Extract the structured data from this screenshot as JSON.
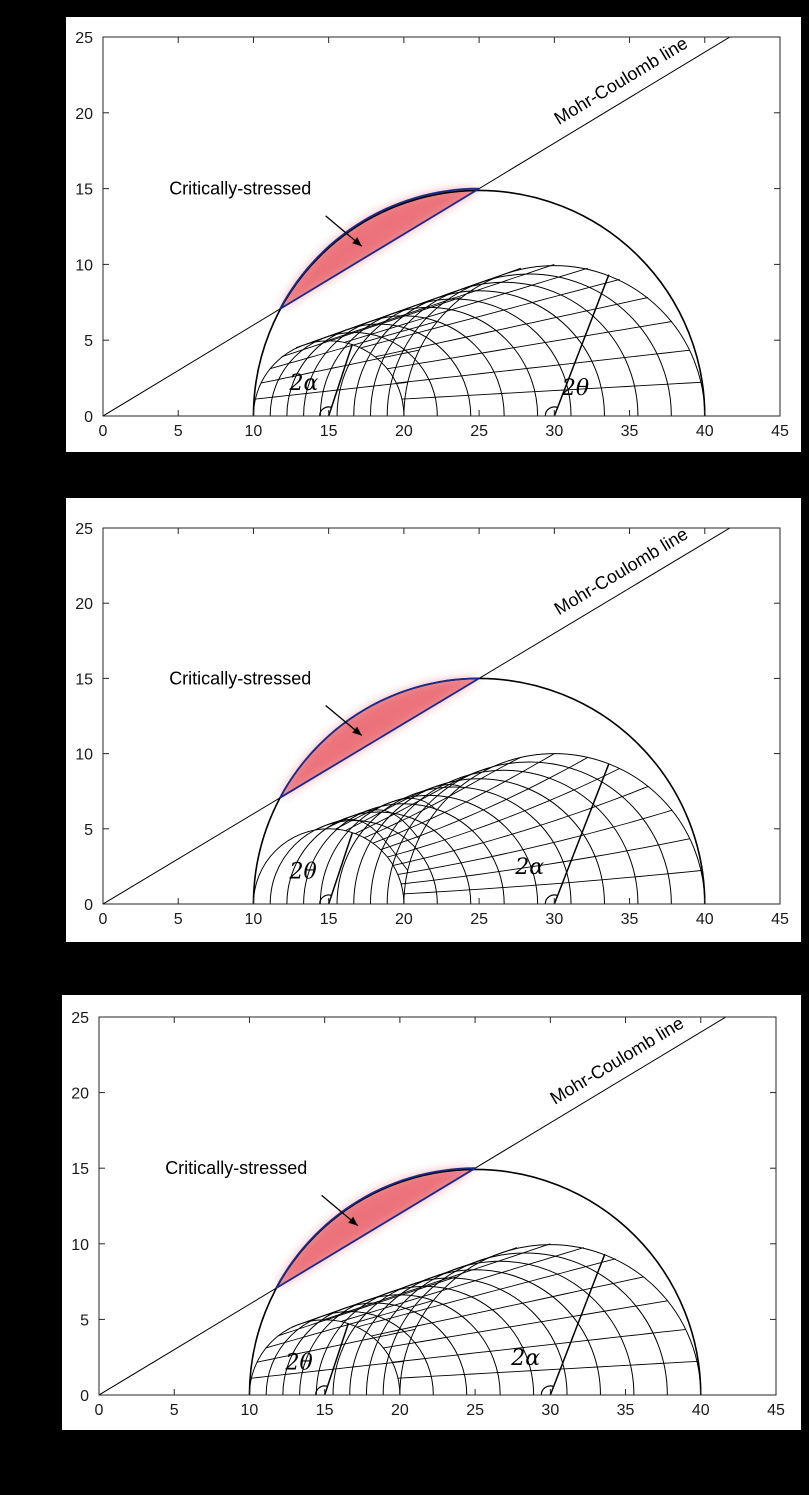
{
  "chart_data": [
    {
      "type": "mohr-circle",
      "title": "",
      "xlabel": "",
      "ylabel": "",
      "xlim": [
        0,
        45
      ],
      "ylim": [
        0,
        25
      ],
      "xticks": [
        0,
        5,
        10,
        15,
        20,
        25,
        30,
        35,
        40,
        45
      ],
      "yticks": [
        0,
        5,
        10,
        15,
        20,
        25
      ],
      "grid": false,
      "inner_circle": {
        "center": 15,
        "radius": 5
      },
      "outer_circle": {
        "center": 30,
        "radius": 10
      },
      "envelope_circle": {
        "center": 25,
        "radius": 15
      },
      "mohr_coulomb_line": {
        "slope": 0.6,
        "intercept": 0,
        "label": "Mohr-Coulomb line"
      },
      "critical_region": {
        "label": "Critically-stressed",
        "from": [
          11.76,
          7.06
        ],
        "to": [
          25,
          15
        ]
      },
      "family_variable": "alpha",
      "angle_labels": [
        {
          "text": "2α",
          "center": 15
        },
        {
          "text": "2θ",
          "center": 30
        }
      ]
    },
    {
      "type": "mohr-circle",
      "title": "",
      "xlabel": "",
      "ylabel": "",
      "xlim": [
        0,
        45
      ],
      "ylim": [
        0,
        25
      ],
      "xticks": [
        0,
        5,
        10,
        15,
        20,
        25,
        30,
        35,
        40,
        45
      ],
      "yticks": [
        0,
        5,
        10,
        15,
        20,
        25
      ],
      "grid": false,
      "inner_circle": {
        "center": 15,
        "radius": 5
      },
      "outer_circle": {
        "center": 30,
        "radius": 10
      },
      "envelope_circle": {
        "center": 25,
        "radius": 15
      },
      "mohr_coulomb_line": {
        "slope": 0.6,
        "intercept": 0,
        "label": "Mohr-Coulomb line"
      },
      "critical_region": {
        "label": "Critically-stressed",
        "from": [
          11.76,
          7.06
        ],
        "to": [
          25,
          15
        ]
      },
      "family_variable": "theta",
      "angle_labels": [
        {
          "text": "2θ",
          "center": 15
        },
        {
          "text": "2α",
          "center": 30
        }
      ]
    },
    {
      "type": "mohr-circle",
      "title": "",
      "xlabel": "",
      "ylabel": "",
      "xlim": [
        0,
        45
      ],
      "ylim": [
        0,
        25
      ],
      "xticks": [
        0,
        5,
        10,
        15,
        20,
        25,
        30,
        35,
        40,
        45
      ],
      "yticks": [
        0,
        5,
        10,
        15,
        20,
        25
      ],
      "grid": false,
      "inner_circle": {
        "center": 15,
        "radius": 5
      },
      "outer_circle": {
        "center": 30,
        "radius": 10
      },
      "envelope_circle": {
        "center": 25,
        "radius": 15
      },
      "mohr_coulomb_line": {
        "slope": 0.6,
        "intercept": 0,
        "label": "Mohr-Coulomb line"
      },
      "critical_region": {
        "label": "Critically-stressed",
        "from": [
          11.76,
          7.06
        ],
        "to": [
          25,
          15
        ]
      },
      "family_variable": "both",
      "angle_labels": [
        {
          "text": "2θ",
          "center": 15
        },
        {
          "text": "2α",
          "center": 30
        }
      ]
    }
  ]
}
